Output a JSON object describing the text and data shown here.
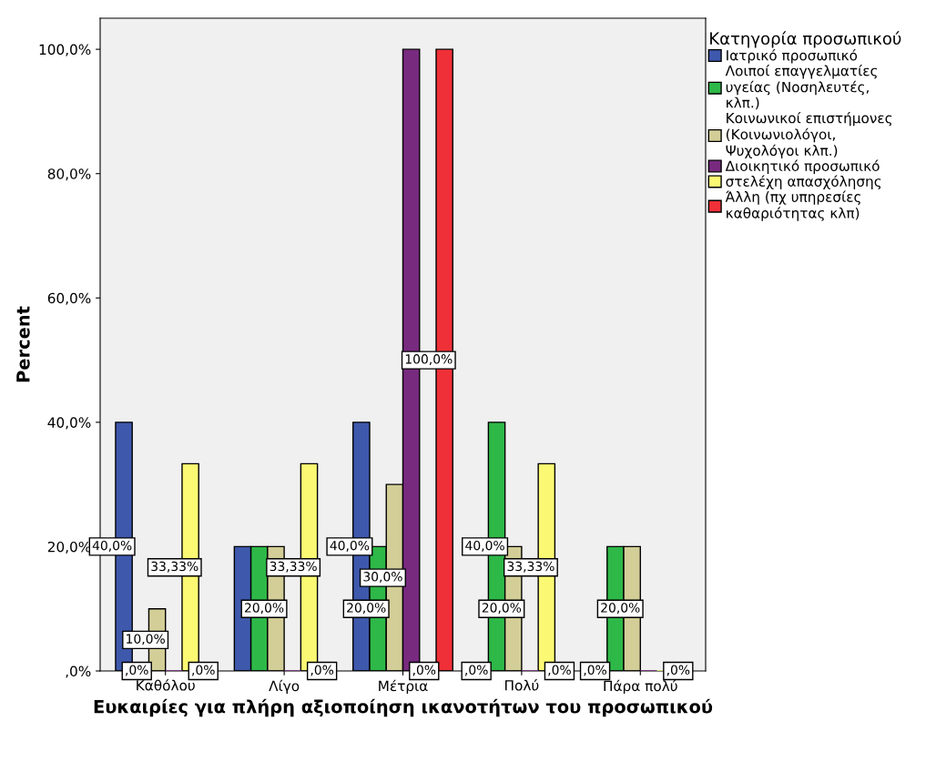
{
  "chart_data": {
    "type": "bar",
    "xlabel": "Ευκαιρίες για πλήρη αξιοποίηση ικανοτήτων του προσωπικού",
    "ylabel": "Percent",
    "legend_title": "Κατηγορία προσωπικού",
    "categories": [
      "Καθόλου",
      "Λίγο",
      "Μέτρια",
      "Πολύ",
      "Πάρα πολύ"
    ],
    "series": [
      {
        "name": "Ιατρικό προσωπικό",
        "color": "#3e58ac",
        "values": [
          40,
          20,
          40,
          0,
          0
        ],
        "value_labels": [
          "40,0%",
          null,
          "40,0%",
          ",0%",
          ",0%"
        ]
      },
      {
        "name": "Λοιποί επαγγελματίες υγείας (Νοσηλευτές, κλπ.)",
        "color": "#2eb848",
        "values": [
          0,
          20,
          20,
          40,
          20
        ],
        "value_labels": [
          ",0%",
          null,
          "20,0%",
          "40,0%",
          null
        ]
      },
      {
        "name": "Κοινωνικοί επιστήμονες (Κοινωνιολόγοι, Ψυχολόγοι κλπ.)",
        "color": "#d3ce97",
        "values": [
          10,
          20,
          30,
          20,
          20
        ],
        "value_labels": [
          "10,0%",
          "20,0%",
          "30,0%",
          "20,0%",
          "20,0%"
        ]
      },
      {
        "name": "Διοικητικό προσωπικό",
        "color": "#782a7f",
        "values": [
          0,
          0,
          100,
          0,
          0
        ],
        "value_labels": [
          null,
          null,
          null,
          null,
          null
        ]
      },
      {
        "name": "στελέχη απασχόλησης",
        "color": "#fbf873",
        "values": [
          33.33,
          33.33,
          0,
          33.33,
          0
        ],
        "value_labels": [
          "33,33%",
          "33,33%",
          ",0%",
          "33,33%",
          null
        ]
      },
      {
        "name": "Άλλη (πχ υπηρεσίες καθαριότητας κλπ)",
        "color": "#ef3038",
        "values": [
          0,
          0,
          100,
          0,
          0
        ],
        "value_labels": [
          ",0%",
          ",0%",
          "100,0%",
          ",0%",
          ",0%"
        ]
      }
    ],
    "ylim": [
      0,
      105
    ],
    "yticks": [
      {
        "value": 0,
        "label": ",0%"
      },
      {
        "value": 20,
        "label": "20,0%"
      },
      {
        "value": 40,
        "label": "40,0%"
      },
      {
        "value": 60,
        "label": "60,0%"
      },
      {
        "value": 80,
        "label": "80,0%"
      },
      {
        "value": 100,
        "label": "100,0%"
      }
    ],
    "grid": false,
    "legend": "top right"
  }
}
